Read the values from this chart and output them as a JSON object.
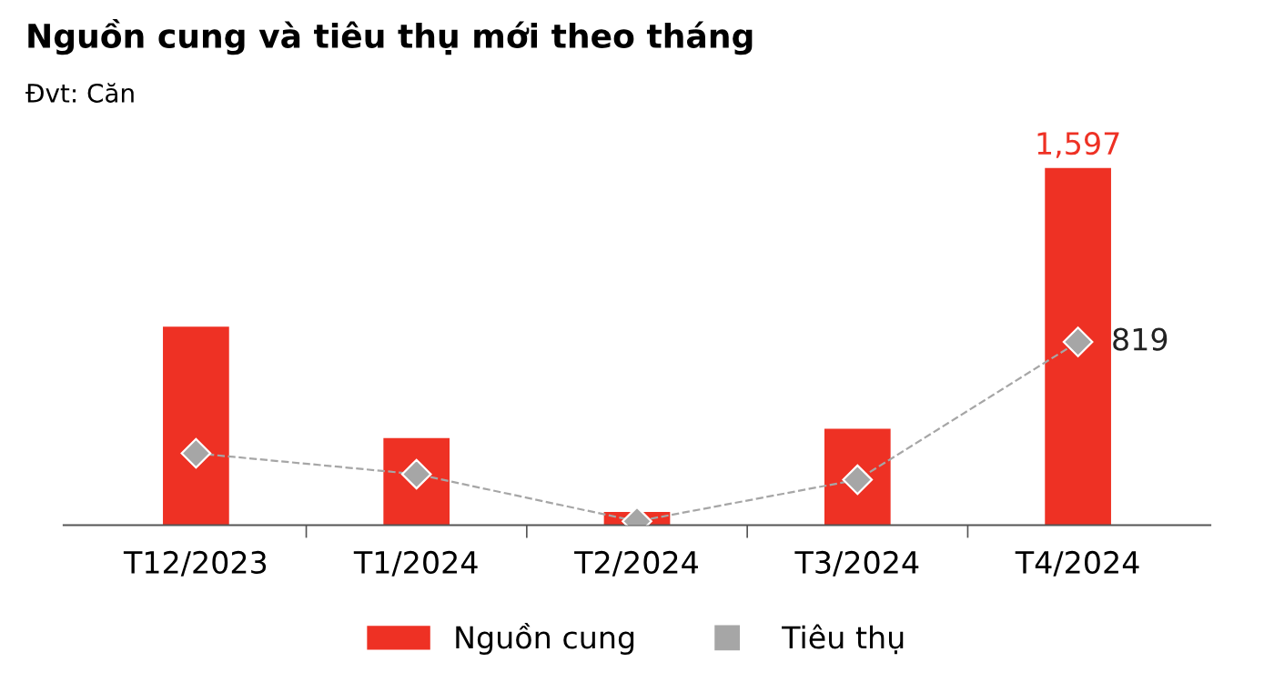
{
  "chart_data": {
    "type": "bar",
    "title": "Nguồn cung và tiêu thụ mới theo tháng",
    "subtitle": "Đvt: Căn",
    "categories": [
      "T12/2023",
      "T1/2024",
      "T2/2024",
      "T3/2024",
      "T4/2024"
    ],
    "series": [
      {
        "name": "Nguồn cung",
        "color": "#ee3124",
        "values": [
          887,
          389,
          59,
          431,
          1597
        ],
        "value_labels": [
          null,
          null,
          null,
          null,
          "1,597"
        ]
      },
      {
        "name": "Tiêu thụ",
        "type": "line",
        "color": "#a6a6a6",
        "marker": "diamond",
        "line_style": "dashed",
        "values": [
          321,
          228,
          17,
          203,
          819
        ],
        "value_labels": [
          null,
          null,
          null,
          null,
          "819"
        ]
      }
    ],
    "legend": "bottom",
    "grid": false
  }
}
